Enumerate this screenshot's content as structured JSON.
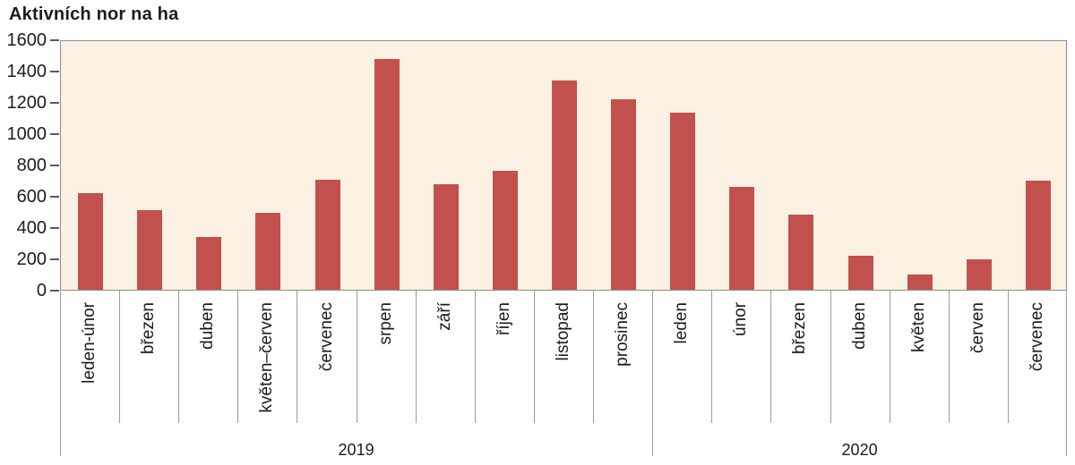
{
  "chart_data": {
    "type": "bar",
    "title": "Aktivních nor na ha",
    "categories": [
      "leden-únor",
      "březen",
      "duben",
      "květen–červen",
      "červenec",
      "srpen",
      "září",
      "říjen",
      "listopad",
      "prosinec",
      "leden",
      "únor",
      "březen",
      "duben",
      "květen",
      "červen",
      "červenec"
    ],
    "values": [
      620,
      510,
      340,
      490,
      705,
      1475,
      675,
      760,
      1340,
      1220,
      1130,
      655,
      480,
      215,
      95,
      195,
      695
    ],
    "year_groups": [
      {
        "label": "2019",
        "count": 10
      },
      {
        "label": "2020",
        "count": 7
      }
    ],
    "xlabel": "",
    "ylabel": "",
    "ylim": [
      0,
      1600
    ],
    "yticks": [
      0,
      200,
      400,
      600,
      800,
      1000,
      1200,
      1400,
      1600
    ],
    "grid": false,
    "legend_position": "none",
    "colors": {
      "bar": "#c2514e",
      "plot_background": "#faf1e3",
      "axis_border": "#8d8d8d",
      "separator": "#9c9c9c",
      "tick": "#595959",
      "text": "#1e1c1a"
    }
  }
}
